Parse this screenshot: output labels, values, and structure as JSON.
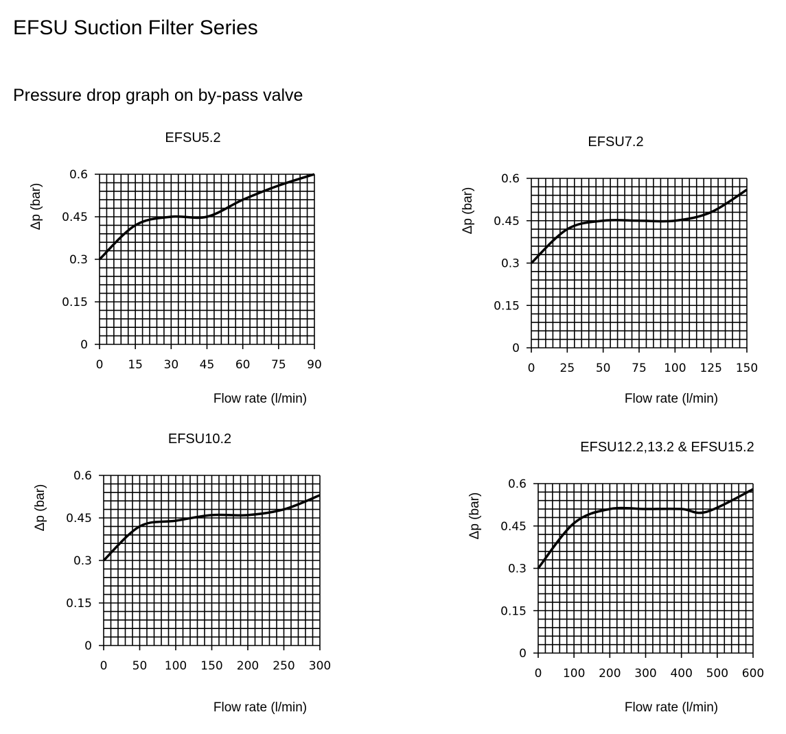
{
  "header": {
    "title": "EFSU Suction Filter Series",
    "subtitle": "Pressure drop graph on by-pass valve"
  },
  "chart_data": [
    {
      "type": "line",
      "title": "EFSU5.2",
      "xlabel": "Flow rate (l/min)",
      "ylabel": "Δp (bar)",
      "xlim": [
        0,
        90
      ],
      "ylim": [
        0,
        0.6
      ],
      "xticks": [
        "0",
        "15",
        "30",
        "45",
        "60",
        "75",
        "90"
      ],
      "yticks": [
        "0",
        "0.15",
        "0.3",
        "0.45",
        "0.6"
      ],
      "grid": true,
      "x": [
        0,
        15,
        30,
        45,
        60,
        75,
        90
      ],
      "y": [
        0.3,
        0.42,
        0.45,
        0.45,
        0.51,
        0.56,
        0.6
      ]
    },
    {
      "type": "line",
      "title": "EFSU7.2",
      "xlabel": "Flow rate (l/min)",
      "ylabel": "Δp (bar)",
      "xlim": [
        0,
        150
      ],
      "ylim": [
        0,
        0.6
      ],
      "xticks": [
        "0",
        "25",
        "50",
        "75",
        "100",
        "125",
        "150"
      ],
      "yticks": [
        "0",
        "0.15",
        "0.3",
        "0.45",
        "0.6"
      ],
      "grid": true,
      "x": [
        0,
        25,
        50,
        75,
        100,
        125,
        150
      ],
      "y": [
        0.3,
        0.42,
        0.45,
        0.45,
        0.45,
        0.48,
        0.56
      ]
    },
    {
      "type": "line",
      "title": "EFSU10.2",
      "xlabel": "Flow rate (l/min)",
      "ylabel": "Δp (bar)",
      "xlim": [
        0,
        300
      ],
      "ylim": [
        0,
        0.6
      ],
      "xticks": [
        "0",
        "50",
        "100",
        "150",
        "200",
        "250",
        "300"
      ],
      "yticks": [
        "0",
        "0.15",
        "0.3",
        "0.45",
        "0.6"
      ],
      "grid": true,
      "x": [
        0,
        50,
        100,
        150,
        200,
        250,
        300
      ],
      "y": [
        0.3,
        0.42,
        0.44,
        0.46,
        0.46,
        0.48,
        0.53
      ]
    },
    {
      "type": "line",
      "title": "EFSU12.2,13.2 & EFSU15.2",
      "xlabel": "Flow rate (l/min)",
      "ylabel": "Δp (bar)",
      "xlim": [
        0,
        600
      ],
      "ylim": [
        0,
        0.6
      ],
      "xticks": [
        "0",
        "100",
        "200",
        "300",
        "400",
        "500",
        "600"
      ],
      "yticks": [
        "0",
        "0.15",
        "0.3",
        "0.45",
        "0.6"
      ],
      "grid": true,
      "x": [
        0,
        100,
        200,
        300,
        400,
        470,
        600
      ],
      "y": [
        0.3,
        0.46,
        0.51,
        0.51,
        0.51,
        0.5,
        0.58
      ]
    }
  ]
}
